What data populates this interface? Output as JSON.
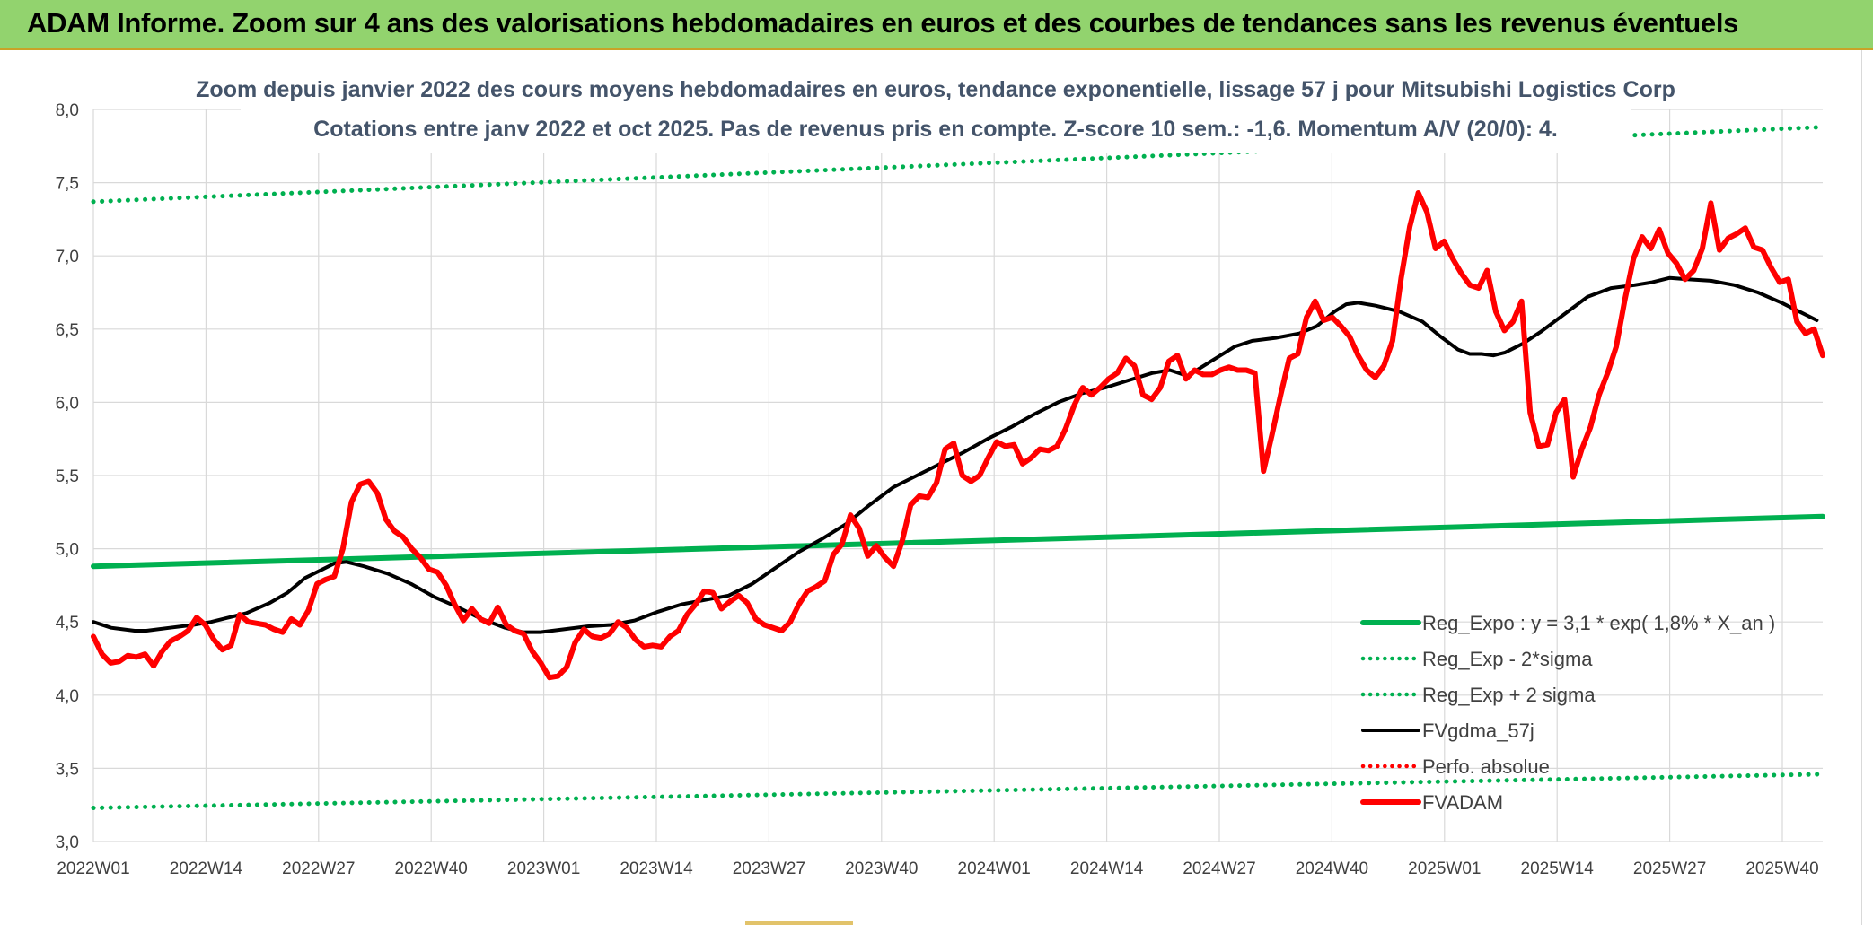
{
  "banner": {
    "title": "ADAM Informe. Zoom sur 4 ans des valorisations hebdomadaires en euros et des courbes de tendances sans les revenus éventuels"
  },
  "colors": {
    "banner_bg": "#92d36e",
    "trend_green": "#00b050",
    "fvadam_red": "#ff0000",
    "fvgdma_black": "#000000",
    "perfo_red": "#ff0000",
    "subtitle": "#44546a"
  },
  "chart_data": {
    "type": "line",
    "title": "Zoom depuis janvier 2022 des cours moyens hebdomadaires en euros, tendance exponentielle, lissage 57 j pour Mitsubishi Logistics Corp",
    "subtitle": "Cotations entre janv 2022 et oct 2025. Pas de revenus pris en compte. Z-score 10 sem.: -1,6. Momentum A/V (20/0): 4.",
    "xlabel": "",
    "ylabel": "",
    "ylim": [
      3.0,
      8.0
    ],
    "grid": true,
    "legend_position": "bottom-right",
    "x_weeks": 198,
    "x_tick_labels": [
      "2022W01",
      "2022W14",
      "2022W27",
      "2022W40",
      "2023W01",
      "2023W14",
      "2023W27",
      "2023W40",
      "2024W01",
      "2024W14",
      "2024W27",
      "2024W40",
      "2025W01",
      "2025W14",
      "2025W27",
      "2025W40"
    ],
    "y_tick_labels": [
      "3,0",
      "3,5",
      "4,0",
      "4,5",
      "5,0",
      "5,5",
      "6,0",
      "6,5",
      "7,0",
      "7,5",
      "8,0"
    ],
    "series": [
      {
        "name": "Reg_Expo : y = 3,1 * exp( 1,8% *  X_an )",
        "style": "solid-thick",
        "color": "#00b050",
        "anchors": [
          [
            0,
            4.88
          ],
          [
            197,
            5.22
          ]
        ]
      },
      {
        "name": "Reg_Exp - 2*sigma",
        "style": "dotted",
        "color": "#00b050",
        "anchors": [
          [
            0,
            3.23
          ],
          [
            197,
            3.46
          ]
        ]
      },
      {
        "name": "Reg_Exp + 2 sigma",
        "style": "dotted",
        "color": "#00b050",
        "anchors": [
          [
            0,
            7.37
          ],
          [
            197,
            7.88
          ]
        ]
      },
      {
        "name": "FVgdma_57j",
        "style": "solid",
        "color": "#000000",
        "anchors": [
          [
            0,
            4.5
          ],
          [
            3,
            4.46
          ],
          [
            7,
            4.44
          ],
          [
            9,
            4.44
          ],
          [
            13,
            4.46
          ],
          [
            17,
            4.48
          ],
          [
            20,
            4.5
          ],
          [
            23,
            4.53
          ],
          [
            26,
            4.56
          ],
          [
            30,
            4.63
          ],
          [
            33,
            4.7
          ],
          [
            36,
            4.8
          ],
          [
            39,
            4.86
          ],
          [
            41,
            4.9
          ],
          [
            43,
            4.91
          ],
          [
            46,
            4.88
          ],
          [
            50,
            4.83
          ],
          [
            54,
            4.76
          ],
          [
            58,
            4.67
          ],
          [
            62,
            4.6
          ],
          [
            66,
            4.52
          ],
          [
            70,
            4.46
          ],
          [
            73,
            4.43
          ],
          [
            76,
            4.43
          ],
          [
            80,
            4.45
          ],
          [
            84,
            4.47
          ],
          [
            88,
            4.48
          ],
          [
            92,
            4.51
          ],
          [
            96,
            4.57
          ],
          [
            100,
            4.62
          ],
          [
            104,
            4.65
          ],
          [
            108,
            4.68
          ],
          [
            112,
            4.76
          ],
          [
            116,
            4.87
          ],
          [
            120,
            4.98
          ],
          [
            124,
            5.07
          ],
          [
            128,
            5.17
          ],
          [
            132,
            5.3
          ],
          [
            136,
            5.42
          ],
          [
            140,
            5.5
          ],
          [
            144,
            5.58
          ],
          [
            148,
            5.66
          ],
          [
            152,
            5.75
          ],
          [
            156,
            5.83
          ],
          [
            160,
            5.92
          ],
          [
            164,
            6.0
          ],
          [
            168,
            6.06
          ],
          [
            172,
            6.1
          ],
          [
            176,
            6.15
          ],
          [
            180,
            6.2
          ],
          [
            183,
            6.22
          ],
          [
            186,
            6.18
          ],
          [
            190,
            6.28
          ],
          [
            194,
            6.38
          ],
          [
            197,
            6.42
          ],
          [
            201,
            6.44
          ],
          [
            205,
            6.47
          ],
          [
            208,
            6.52
          ],
          [
            211,
            6.62
          ],
          [
            213,
            6.67
          ],
          [
            215,
            6.68
          ],
          [
            218,
            6.66
          ],
          [
            222,
            6.62
          ],
          [
            226,
            6.55
          ],
          [
            229,
            6.45
          ],
          [
            232,
            6.36
          ],
          [
            234,
            6.33
          ],
          [
            236,
            6.33
          ],
          [
            238,
            6.32
          ],
          [
            240,
            6.34
          ],
          [
            243,
            6.4
          ],
          [
            246,
            6.48
          ],
          [
            250,
            6.6
          ],
          [
            254,
            6.72
          ],
          [
            258,
            6.78
          ],
          [
            262,
            6.8
          ],
          [
            265,
            6.82
          ],
          [
            268,
            6.85
          ],
          [
            271,
            6.84
          ],
          [
            275,
            6.83
          ],
          [
            279,
            6.8
          ],
          [
            283,
            6.75
          ],
          [
            287,
            6.68
          ],
          [
            290,
            6.62
          ],
          [
            293,
            6.56
          ]
        ]
      },
      {
        "name": "Perfo. absolue",
        "style": "dotted",
        "color": "#ff0000",
        "anchors": []
      },
      {
        "name": "FVADAM",
        "style": "solid-thick",
        "color": "#ff0000",
        "anchors": [
          [
            0,
            4.4
          ],
          [
            2,
            4.28
          ],
          [
            4,
            4.22
          ],
          [
            6,
            4.23
          ],
          [
            8,
            4.27
          ],
          [
            10,
            4.26
          ],
          [
            12,
            4.28
          ],
          [
            14,
            4.2
          ],
          [
            16,
            4.3
          ],
          [
            18,
            4.37
          ],
          [
            20,
            4.4
          ],
          [
            22,
            4.44
          ],
          [
            24,
            4.53
          ],
          [
            26,
            4.48
          ],
          [
            28,
            4.38
          ],
          [
            30,
            4.31
          ],
          [
            32,
            4.34
          ],
          [
            34,
            4.55
          ],
          [
            36,
            4.5
          ],
          [
            38,
            4.49
          ],
          [
            40,
            4.48
          ],
          [
            42,
            4.45
          ],
          [
            44,
            4.43
          ],
          [
            46,
            4.52
          ],
          [
            48,
            4.48
          ],
          [
            50,
            4.58
          ],
          [
            52,
            4.76
          ],
          [
            54,
            4.79
          ],
          [
            56,
            4.81
          ],
          [
            58,
            5.0
          ],
          [
            60,
            5.32
          ],
          [
            62,
            5.44
          ],
          [
            64,
            5.46
          ],
          [
            66,
            5.38
          ],
          [
            68,
            5.2
          ],
          [
            70,
            5.12
          ],
          [
            72,
            5.08
          ],
          [
            74,
            5.0
          ],
          [
            76,
            4.94
          ],
          [
            78,
            4.86
          ],
          [
            80,
            4.84
          ],
          [
            82,
            4.75
          ],
          [
            84,
            4.62
          ],
          [
            86,
            4.51
          ],
          [
            88,
            4.59
          ],
          [
            90,
            4.52
          ],
          [
            92,
            4.49
          ],
          [
            94,
            4.6
          ],
          [
            96,
            4.48
          ],
          [
            98,
            4.44
          ],
          [
            100,
            4.42
          ],
          [
            102,
            4.3
          ],
          [
            104,
            4.22
          ],
          [
            106,
            4.12
          ],
          [
            108,
            4.13
          ],
          [
            110,
            4.19
          ],
          [
            112,
            4.36
          ],
          [
            114,
            4.45
          ],
          [
            116,
            4.4
          ],
          [
            118,
            4.39
          ],
          [
            120,
            4.42
          ],
          [
            122,
            4.5
          ],
          [
            124,
            4.46
          ],
          [
            126,
            4.38
          ],
          [
            128,
            4.33
          ],
          [
            130,
            4.34
          ],
          [
            132,
            4.33
          ],
          [
            134,
            4.4
          ],
          [
            136,
            4.44
          ],
          [
            138,
            4.55
          ],
          [
            140,
            4.62
          ],
          [
            142,
            4.71
          ],
          [
            144,
            4.7
          ],
          [
            146,
            4.59
          ],
          [
            148,
            4.64
          ],
          [
            150,
            4.68
          ],
          [
            152,
            4.63
          ],
          [
            154,
            4.52
          ],
          [
            156,
            4.48
          ],
          [
            158,
            4.46
          ],
          [
            160,
            4.44
          ],
          [
            162,
            4.5
          ],
          [
            164,
            4.62
          ],
          [
            166,
            4.71
          ],
          [
            168,
            4.74
          ],
          [
            170,
            4.78
          ],
          [
            172,
            4.96
          ],
          [
            174,
            5.03
          ],
          [
            176,
            5.23
          ],
          [
            178,
            5.14
          ],
          [
            180,
            4.95
          ],
          [
            182,
            5.02
          ],
          [
            184,
            4.94
          ],
          [
            186,
            4.88
          ],
          [
            188,
            5.05
          ],
          [
            190,
            5.3
          ],
          [
            192,
            5.36
          ],
          [
            194,
            5.35
          ],
          [
            196,
            5.45
          ],
          [
            198,
            5.68
          ],
          [
            200,
            5.72
          ],
          [
            202,
            5.5
          ],
          [
            204,
            5.46
          ],
          [
            206,
            5.5
          ],
          [
            208,
            5.62
          ],
          [
            210,
            5.73
          ],
          [
            212,
            5.7
          ],
          [
            214,
            5.71
          ],
          [
            216,
            5.58
          ],
          [
            218,
            5.62
          ],
          [
            220,
            5.68
          ],
          [
            222,
            5.67
          ],
          [
            224,
            5.7
          ],
          [
            226,
            5.82
          ],
          [
            228,
            5.98
          ],
          [
            230,
            6.1
          ],
          [
            232,
            6.05
          ],
          [
            234,
            6.1
          ],
          [
            236,
            6.16
          ],
          [
            238,
            6.2
          ],
          [
            240,
            6.3
          ],
          [
            242,
            6.25
          ],
          [
            244,
            6.05
          ],
          [
            246,
            6.02
          ],
          [
            248,
            6.1
          ],
          [
            250,
            6.28
          ],
          [
            252,
            6.32
          ],
          [
            254,
            6.16
          ],
          [
            256,
            6.22
          ],
          [
            258,
            6.19
          ],
          [
            260,
            6.19
          ],
          [
            262,
            6.22
          ],
          [
            264,
            6.24
          ],
          [
            266,
            6.22
          ]
        ]
      }
    ]
  },
  "legend": {
    "items": [
      "Reg_Expo : y = 3,1 * exp( 1,8% *  X_an )",
      "Reg_Exp - 2*sigma",
      "Reg_Exp + 2 sigma",
      "FVgdma_57j",
      "Perfo. absolue",
      "FVADAM"
    ]
  }
}
